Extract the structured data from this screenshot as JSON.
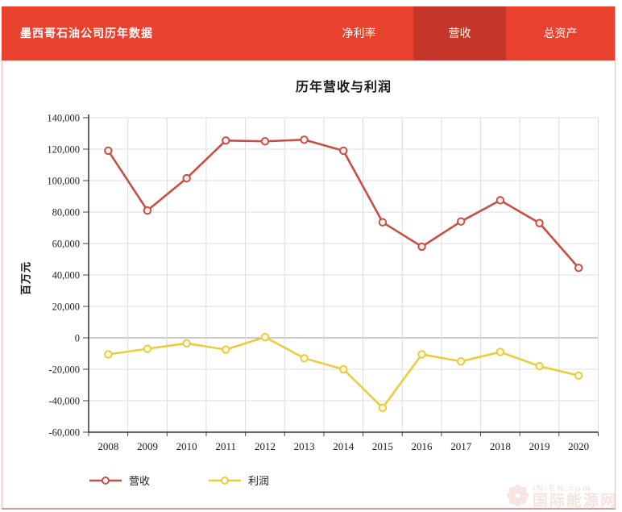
{
  "header": {
    "title": "墨西哥石油公司历年数据",
    "tabs": [
      {
        "label": "净利率",
        "active": false
      },
      {
        "label": "营收",
        "active": true
      },
      {
        "label": "总资产",
        "active": false
      }
    ]
  },
  "chart": {
    "title": "历年营收与利润",
    "ylabel": "百万元"
  },
  "legend": [
    {
      "label": "营收",
      "color": "#c64f46"
    },
    {
      "label": "利润",
      "color": "#e9cd3f"
    }
  ],
  "watermark": {
    "line1": "IN-EN.com",
    "line2": "国际能源网",
    "icon": "sun-logo"
  },
  "colors": {
    "header_bg": "#e8422e",
    "active_tab_bg": "#c5372a",
    "revenue_line": "#c64f46",
    "profit_line": "#e9cd3f",
    "grid": "#dcdcdc",
    "zero_line": "#999999",
    "axis": "#333333"
  },
  "chart_data": {
    "type": "line",
    "title": "历年营收与利润",
    "xlabel": "",
    "ylabel": "百万元",
    "categories": [
      "2008",
      "2009",
      "2010",
      "2011",
      "2012",
      "2013",
      "2014",
      "2015",
      "2016",
      "2017",
      "2018",
      "2019",
      "2020"
    ],
    "series": [
      {
        "name": "营收",
        "color": "#c64f46",
        "marker_fill": "#fdf3f1",
        "values": [
          119000,
          81000,
          101500,
          125500,
          125000,
          126000,
          119000,
          73500,
          58000,
          74000,
          87500,
          73000,
          44500
        ]
      },
      {
        "name": "利润",
        "color": "#e9cd3f",
        "marker_fill": "#fdf9e2",
        "values": [
          -10500,
          -7000,
          -3500,
          -7500,
          500,
          -13000,
          -20000,
          -44500,
          -10500,
          -15000,
          -9000,
          -18000,
          -24000
        ]
      }
    ],
    "ylim": [
      -60000,
      140000
    ],
    "ytick_step": 20000,
    "grid": true,
    "legend_position": "bottom"
  }
}
